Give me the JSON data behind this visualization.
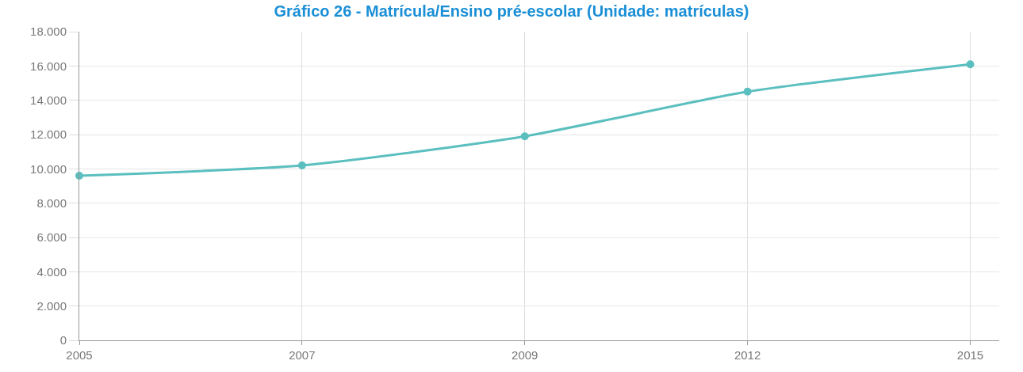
{
  "chart_data": {
    "type": "line",
    "title": "Gráfico 26 - Matrícula/Ensino pré-escolar (Unidade: matrículas)",
    "categories": [
      "2005",
      "2007",
      "2009",
      "2012",
      "2015"
    ],
    "series": [
      {
        "color": "#5bbfbf",
        "values": [
          9600,
          10200,
          11900,
          14500,
          16100
        ]
      }
    ],
    "ylim": [
      0,
      18000
    ],
    "yticks": [
      {
        "value": 0,
        "label": "0"
      },
      {
        "value": 2000,
        "label": "2.000"
      },
      {
        "value": 4000,
        "label": "4.000"
      },
      {
        "value": 6000,
        "label": "6.000"
      },
      {
        "value": 8000,
        "label": "8.000"
      },
      {
        "value": 10000,
        "label": "10.000"
      },
      {
        "value": 12000,
        "label": "12.000"
      },
      {
        "value": 14000,
        "label": "14.000"
      },
      {
        "value": 16000,
        "label": "16.000"
      },
      {
        "value": 18000,
        "label": "18.000"
      }
    ],
    "grid": true,
    "marker": "circle",
    "line_style": "solid"
  }
}
